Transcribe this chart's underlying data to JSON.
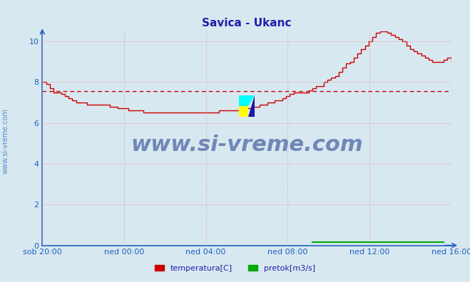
{
  "title": "Savica - Ukanc",
  "title_color": "#2020aa",
  "bg_color": "#d8e8f0",
  "plot_bg_color": "#d8e8f0",
  "ylabel_color": "#2060c0",
  "xlabel_color": "#2060c0",
  "grid_color": "#e8a0a0",
  "axis_color": "#2060c0",
  "temp_color": "#cc0000",
  "flow_color": "#00aa00",
  "avg_color": "#cc0000",
  "watermark_color": "#1a3a8a",
  "ylim": [
    0,
    10.5
  ],
  "yticks": [
    0,
    2,
    4,
    6,
    8,
    10
  ],
  "avg_value": 7.55,
  "xtick_labels": [
    "sob 20:00",
    "ned 00:00",
    "ned 04:00",
    "ned 08:00",
    "ned 12:00",
    "ned 16:00"
  ],
  "legend_labels": [
    "temperatura[C]",
    "pretok[m3/s]"
  ],
  "sidewater_text": "www.si-vreme.com",
  "watermark_text": "www.si-vreme.com",
  "temp_data": [
    8.0,
    7.9,
    7.7,
    7.5,
    7.5,
    7.4,
    7.3,
    7.2,
    7.1,
    7.0,
    7.0,
    7.0,
    6.9,
    6.9,
    6.9,
    6.9,
    6.9,
    6.9,
    6.8,
    6.8,
    6.7,
    6.7,
    6.7,
    6.6,
    6.6,
    6.6,
    6.6,
    6.5,
    6.5,
    6.5,
    6.5,
    6.5,
    6.5,
    6.5,
    6.5,
    6.5,
    6.5,
    6.5,
    6.5,
    6.5,
    6.5,
    6.5,
    6.5,
    6.5,
    6.5,
    6.5,
    6.5,
    6.6,
    6.6,
    6.6,
    6.6,
    6.6,
    6.6,
    6.7,
    6.7,
    6.7,
    6.8,
    6.8,
    6.9,
    6.9,
    7.0,
    7.0,
    7.1,
    7.1,
    7.2,
    7.3,
    7.4,
    7.5,
    7.5,
    7.5,
    7.5,
    7.6,
    7.7,
    7.8,
    7.8,
    8.0,
    8.1,
    8.2,
    8.3,
    8.5,
    8.7,
    8.9,
    9.0,
    9.2,
    9.4,
    9.6,
    9.8,
    10.0,
    10.2,
    10.4,
    10.5,
    10.5,
    10.4,
    10.3,
    10.2,
    10.1,
    10.0,
    9.8,
    9.6,
    9.5,
    9.4,
    9.3,
    9.2,
    9.1,
    9.0,
    9.0,
    9.0,
    9.1,
    9.2,
    9.0
  ],
  "flow_data_x": [
    72,
    73,
    74,
    75,
    76,
    77,
    78,
    104,
    105,
    106,
    107
  ],
  "flow_data_y": [
    0.15,
    0.15,
    0.15,
    0.15,
    0.15,
    0.15,
    0.15,
    0.15,
    0.15,
    0.15,
    0.15
  ]
}
